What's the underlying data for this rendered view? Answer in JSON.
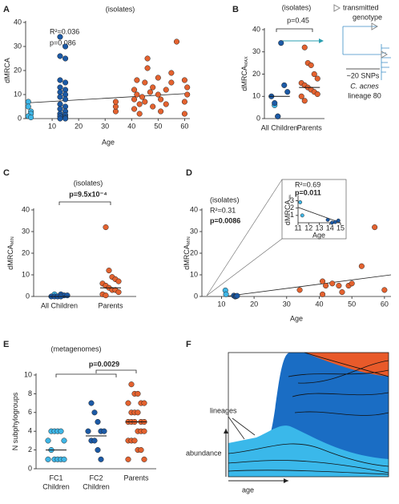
{
  "panel_labels": [
    "A",
    "B",
    "C",
    "D",
    "E",
    "F"
  ],
  "schematic": {
    "lines": [
      "transmitted",
      "genotype"
    ],
    "snps": "~20 SNPs",
    "species": "C. acnes",
    "lineage": "lineage 80"
  },
  "diagram": {
    "lineages": "lineages",
    "abundance": "abundance",
    "age": "age"
  },
  "chart_data": [
    {
      "type": "scatter",
      "title": "(isolates)",
      "xlabel": "Age",
      "ylabel": "dMRCA",
      "annotations": [
        "R²=0.036",
        "p=0.086"
      ],
      "xlim": [
        0,
        62
      ],
      "ylim": [
        0,
        40
      ],
      "xticks": [
        10,
        20,
        30,
        40,
        50,
        60
      ],
      "yticks": [
        0,
        10,
        20,
        30,
        40
      ],
      "series": [
        {
          "color": "#3fb6e6",
          "x": [
            1,
            1,
            2,
            2,
            1,
            2
          ],
          "y": [
            7,
            5,
            3,
            2,
            1,
            0.5
          ]
        },
        {
          "color": "#1c5aa6",
          "x": [
            13,
            15,
            13,
            15,
            13,
            15,
            13,
            15,
            13,
            15,
            13,
            15,
            13,
            15,
            13,
            15,
            13,
            15,
            13,
            15,
            13,
            15
          ],
          "y": [
            34,
            30,
            26,
            25,
            16,
            15,
            13,
            12,
            11,
            10,
            9,
            8,
            6,
            5,
            4,
            3,
            2,
            1.5,
            1,
            0.5,
            0,
            0
          ]
        },
        {
          "color": "#e4622f",
          "x": [
            34,
            34,
            34,
            41,
            41,
            41,
            42,
            42,
            43,
            43,
            44,
            45,
            45,
            46,
            46,
            47,
            48,
            48,
            50,
            50,
            51,
            51,
            53,
            53,
            55,
            55,
            57,
            60,
            60,
            61,
            61,
            60
          ],
          "y": [
            3,
            5,
            7,
            4,
            8,
            12,
            16,
            10,
            6,
            2,
            9,
            7,
            15,
            21,
            25,
            11,
            5,
            13,
            17,
            10,
            3,
            8,
            12,
            6,
            15,
            19,
            32,
            2,
            7,
            10,
            13,
            16
          ]
        }
      ],
      "fit": {
        "x": [
          0,
          62
        ],
        "y": [
          6.5,
          10.5
        ]
      }
    },
    {
      "type": "strip",
      "title": "(isolates)",
      "ylabel": "dMRCA",
      "ylabel_sub": "MAX",
      "annotations": [
        "p=0.45"
      ],
      "categories": [
        "All Children",
        "Parents"
      ],
      "ylim": [
        0,
        40
      ],
      "yticks": [
        0,
        10,
        20,
        30,
        40
      ],
      "series": [
        {
          "color": "#3fb6e6",
          "category": 0,
          "values": [
            6,
            1
          ]
        },
        {
          "color": "#1c5aa6",
          "category": 0,
          "values": [
            34,
            15,
            12,
            10,
            7,
            1
          ]
        },
        {
          "color": "#e4622f",
          "category": 1,
          "values": [
            32,
            25,
            24,
            20,
            18,
            16,
            15,
            14,
            13,
            12,
            11,
            10,
            8
          ]
        }
      ],
      "medians": [
        10,
        14
      ]
    },
    {
      "type": "strip",
      "title": "(isolates)",
      "ylabel": "dMRCA",
      "ylabel_sub": "MIN",
      "annotations": [
        "p=9.5x10⁻⁴"
      ],
      "categories": [
        "All Children",
        "Parents"
      ],
      "ylim": [
        0,
        40
      ],
      "yticks": [
        0,
        10,
        20,
        30,
        40
      ],
      "series": [
        {
          "color": "#3fb6e6",
          "category": 0,
          "values": [
            1,
            0
          ]
        },
        {
          "color": "#1c5aa6",
          "category": 0,
          "values": [
            1,
            0.5,
            0.5,
            0,
            0,
            0,
            0
          ]
        },
        {
          "color": "#e4622f",
          "category": 1,
          "values": [
            32,
            12,
            9,
            8,
            7,
            6,
            5,
            4,
            3,
            3,
            2,
            1,
            0.5
          ]
        }
      ],
      "medians": [
        0,
        4
      ]
    },
    {
      "type": "scatter",
      "title": "(isolates)",
      "xlabel": "Age",
      "ylabel": "dMRCA",
      "ylabel_sub": "MIN",
      "annotations": [
        "R²=0.31",
        "p=0.0086"
      ],
      "xlim": [
        4,
        62
      ],
      "ylim": [
        0,
        40
      ],
      "xticks": [
        10,
        20,
        30,
        40,
        50,
        60
      ],
      "yticks": [
        0,
        10,
        20,
        30,
        40
      ],
      "series": [
        {
          "color": "#3fb6e6",
          "x": [
            11.2,
            11.4
          ],
          "y": [
            2.8,
            1
          ]
        },
        {
          "color": "#1c5aa6",
          "x": [
            13.8,
            14.2,
            14.5,
            14.8
          ],
          "y": [
            0.4,
            0,
            0.1,
            0.3
          ]
        },
        {
          "color": "#e4622f",
          "x": [
            34,
            41,
            41,
            42,
            44,
            46,
            47,
            49,
            50,
            53,
            57,
            60
          ],
          "y": [
            3,
            1,
            7,
            5,
            6,
            5,
            2,
            5,
            6,
            14,
            32,
            3
          ]
        }
      ],
      "fit": {
        "x": [
          11,
          62
        ],
        "y": [
          0,
          10
        ]
      }
    },
    {
      "type": "scatter",
      "xlabel": "Age",
      "ylabel": "dMRCA",
      "ylabel_sub": "MIN",
      "annotations": [
        "R²=0.69",
        "p=0.011"
      ],
      "xlim": [
        11,
        15
      ],
      "ylim": [
        0,
        3.5
      ],
      "xticks": [
        11,
        12,
        13,
        14,
        15
      ],
      "yticks": [
        1,
        2,
        3
      ],
      "series": [
        {
          "color": "#3fb6e6",
          "x": [
            11.2,
            11.4
          ],
          "y": [
            2.8,
            1
          ]
        },
        {
          "color": "#1c5aa6",
          "x": [
            13.8,
            14.2,
            14.5,
            14.8
          ],
          "y": [
            0.4,
            0,
            0.1,
            0.3
          ]
        }
      ],
      "fit": {
        "x": [
          11,
          15
        ],
        "y": [
          2.1,
          0
        ]
      }
    },
    {
      "type": "strip",
      "title": "(metagenomes)",
      "ylabel": "N subphylogroups",
      "annotations": [
        "p=0.0029"
      ],
      "categories": [
        [
          "FC1",
          "Children"
        ],
        [
          "FC2",
          "Children"
        ],
        [
          "Parents"
        ]
      ],
      "ylim": [
        0,
        10
      ],
      "yticks": [
        0,
        2,
        4,
        6,
        8,
        10
      ],
      "series": [
        {
          "color": "#3fb6e6",
          "category": 0,
          "values": [
            4,
            4,
            4,
            4,
            3,
            3,
            2,
            1,
            1,
            1,
            1,
            1
          ]
        },
        {
          "color": "#1c5aa6",
          "category": 1,
          "values": [
            7,
            6,
            5,
            4,
            4,
            4,
            3,
            3,
            2,
            1
          ]
        },
        {
          "color": "#e4622f",
          "category": 2,
          "values": [
            9,
            8,
            8,
            7,
            7,
            7,
            6,
            6,
            6,
            5,
            5,
            5,
            5,
            5,
            4,
            4,
            4,
            3,
            3,
            3,
            2,
            2,
            1,
            1
          ]
        }
      ],
      "medians": [
        2,
        3.5,
        5
      ]
    }
  ]
}
